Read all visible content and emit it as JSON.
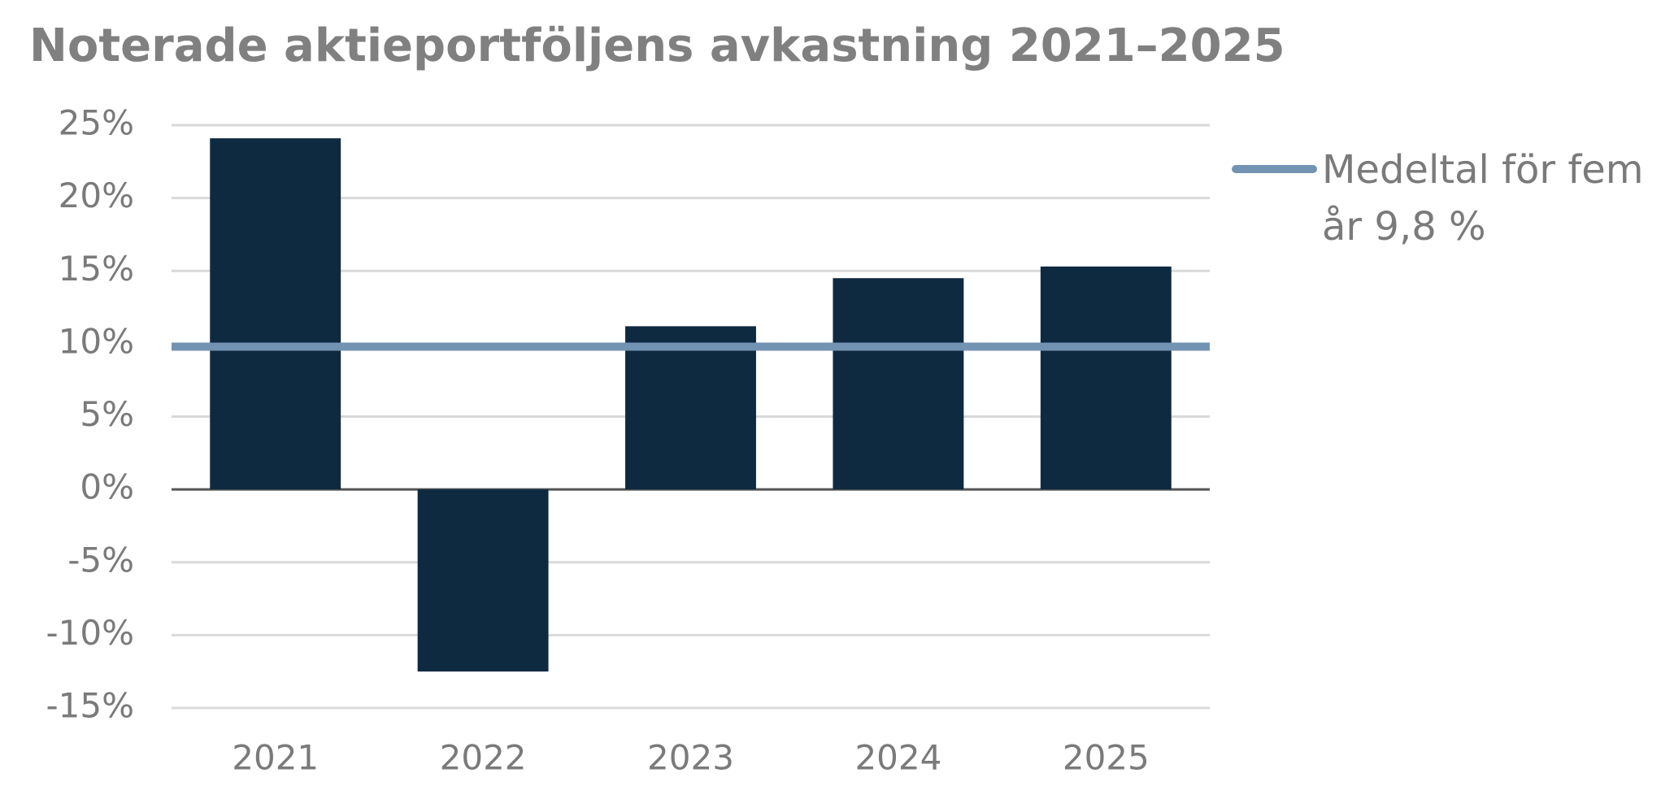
{
  "chart_data": {
    "type": "bar",
    "title": "Noterade aktieportföljens avkastning 2021–2025",
    "categories": [
      "2021",
      "2022",
      "2023",
      "2024",
      "2025"
    ],
    "values": [
      24.1,
      -12.5,
      11.2,
      14.5,
      15.3
    ],
    "color": "#0e2a40",
    "reference_line": {
      "name": "Medeltal för fem år 9,8 %",
      "value": 9.8,
      "color": "#7393b3"
    },
    "ylim": [
      -15,
      25
    ],
    "yticks": [
      {
        "value": -15,
        "label": "-15%"
      },
      {
        "value": -10,
        "label": "-10%"
      },
      {
        "value": -5,
        "label": "-5%"
      },
      {
        "value": 0,
        "label": "0%"
      },
      {
        "value": 5,
        "label": "5%"
      },
      {
        "value": 10,
        "label": "10%"
      },
      {
        "value": 15,
        "label": "15%"
      },
      {
        "value": 20,
        "label": "20%"
      },
      {
        "value": 25,
        "label": "25%"
      }
    ],
    "grid": true,
    "legend": "right"
  }
}
